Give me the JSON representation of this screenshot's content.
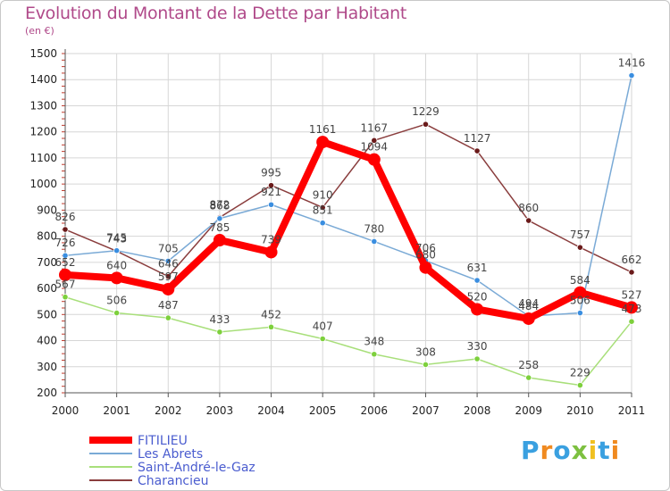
{
  "chart_data": {
    "type": "line",
    "title": "Evolution du Montant de la Dette par Habitant",
    "subtitle": "(en €)",
    "xlabel": "",
    "ylabel": "",
    "ylim": [
      200,
      1500
    ],
    "y_ticks": [
      200,
      300,
      400,
      500,
      600,
      700,
      800,
      900,
      1000,
      1100,
      1200,
      1300,
      1400,
      1500
    ],
    "categories": [
      "2000",
      "2001",
      "2002",
      "2003",
      "2004",
      "2005",
      "2006",
      "2007",
      "2008",
      "2009",
      "2010",
      "2011"
    ],
    "legend_position": "bottom-left",
    "grid": true,
    "series": [
      {
        "name": "FITILIEU",
        "color": "#ff0000",
        "marker_color": "#ff0000",
        "values": [
          652,
          640,
          597,
          785,
          739,
          1161,
          1094,
          680,
          520,
          484,
          584,
          527
        ]
      },
      {
        "name": "Les Abrets",
        "color": "#7aaad6",
        "marker_color": "#3a8ee0",
        "values": [
          726,
          745,
          705,
          868,
          921,
          851,
          780,
          706,
          631,
          494,
          506,
          1416
        ]
      },
      {
        "name": "Saint-André-le-Gaz",
        "color": "#a8df7a",
        "marker_color": "#7dd03c",
        "values": [
          567,
          506,
          487,
          433,
          452,
          407,
          348,
          308,
          330,
          258,
          229,
          473
        ]
      },
      {
        "name": "Charancieu",
        "color": "#8a3d3d",
        "marker_color": "#6a1a1a",
        "values": [
          826,
          743,
          646,
          872,
          995,
          910,
          1167,
          1229,
          1127,
          860,
          757,
          662
        ]
      }
    ]
  },
  "logo": {
    "text": "Proxiti",
    "letters": [
      "P",
      "r",
      "o",
      "x",
      "i",
      "t",
      "i"
    ],
    "colors": [
      "#3aa0e0",
      "#f08a20",
      "#3aa0e0",
      "#7dc040",
      "#f0c020",
      "#3aa0e0",
      "#f08a20"
    ]
  }
}
